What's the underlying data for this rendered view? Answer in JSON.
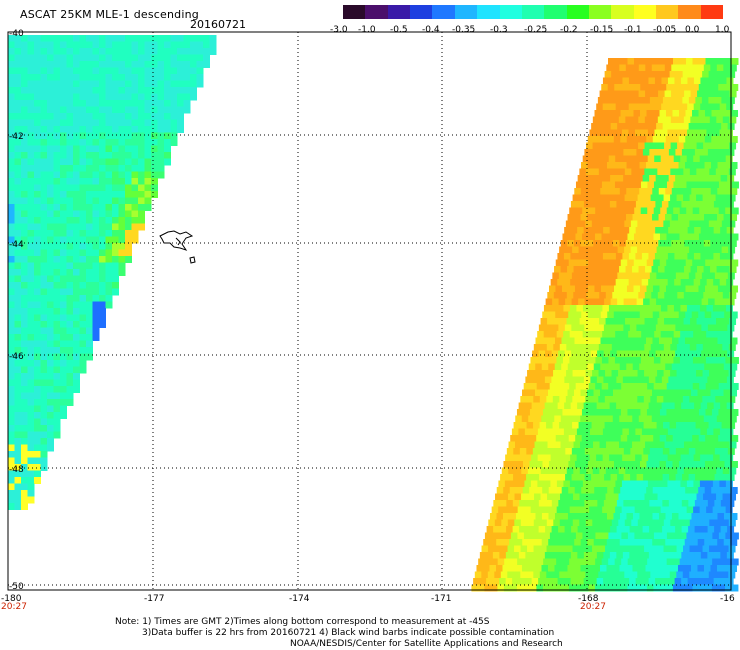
{
  "header": {
    "title": "ASCAT 25KM MLE-1 descending",
    "date": "20160721"
  },
  "colorbar": {
    "colors": [
      "#2a0a2a",
      "#4b0f6b",
      "#3a1aa8",
      "#1e3fe0",
      "#1f78ff",
      "#1fb6ff",
      "#1fe3ff",
      "#20ffe0",
      "#20ffb0",
      "#20ff70",
      "#28ff20",
      "#8aff20",
      "#d8ff20",
      "#ffff20",
      "#ffc81e",
      "#ff8a1a",
      "#ff3a12"
    ],
    "labels": [
      "-3.0",
      "-1.0",
      "-0.5",
      "-0.4",
      "-0.35",
      "-0.3",
      "-0.25",
      "-0.2",
      "-0.15",
      "-0.1",
      "-0.05",
      "0.0",
      "1.0"
    ]
  },
  "map": {
    "lat_labels": [
      "-40",
      "-42",
      "-44",
      "-46",
      "-48",
      "-50"
    ],
    "lon_labels": [
      "-180",
      "-177",
      "-174",
      "-171",
      "-168",
      "-16"
    ],
    "time_labels": [
      "20:27",
      "20:27"
    ],
    "left_swath_colors": [
      "#2cf0d8",
      "#20ffc0",
      "#2cff9a",
      "#3bff70",
      "#64ff3a",
      "#a8ff30",
      "#ffff28",
      "#ffd820",
      "#1fb6ff",
      "#1e6fff"
    ],
    "right_swath_colors": [
      "#ff9a18",
      "#ffb818",
      "#ffd820",
      "#f2ff24",
      "#c0ff2c",
      "#7cff34",
      "#3eff5a",
      "#26ff96",
      "#20ffd0",
      "#20e8ff",
      "#1fb0ff",
      "#1e88ff"
    ],
    "coast_color": "#000000"
  },
  "notes": {
    "line1": "Note: 1) Times are GMT 2)Times along bottom correspond to measurement at -45S",
    "line2": "3)Data buffer is 22 hrs from 20160721 4) Black wind barbs indicate possible contamination",
    "line3": "NOAA/NESDIS/Center for Satellite Applications and Research"
  }
}
